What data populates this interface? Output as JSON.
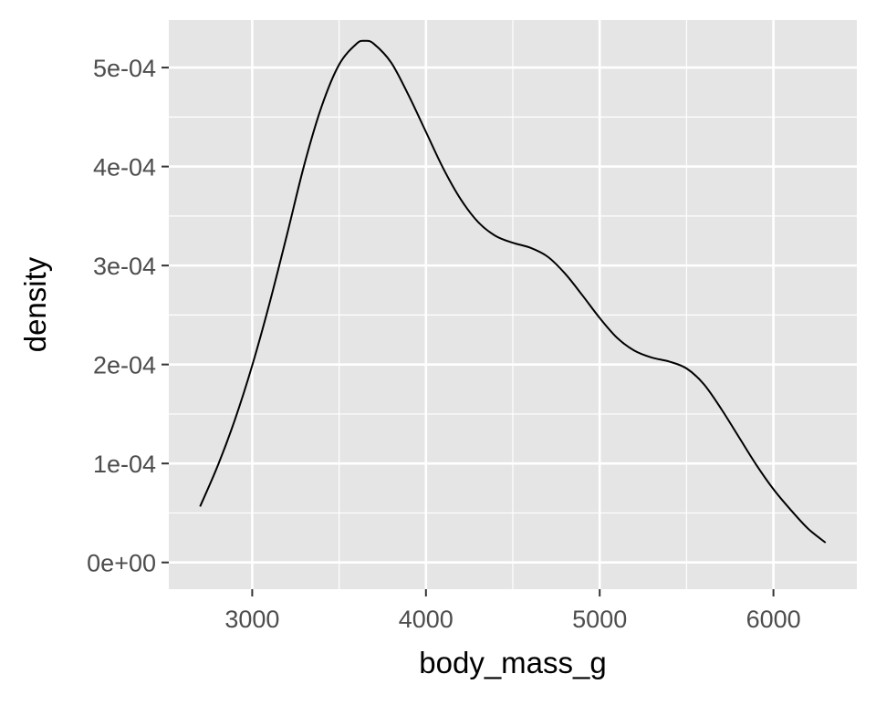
{
  "chart_data": {
    "type": "line",
    "title": "",
    "xlabel": "body_mass_g",
    "ylabel": "density",
    "xlim": [
      2520,
      6480
    ],
    "ylim": [
      -2.7e-05,
      0.000548
    ],
    "xticks": [
      3000,
      4000,
      5000,
      6000
    ],
    "xtick_labels": [
      "3000",
      "4000",
      "5000",
      "6000"
    ],
    "yticks": [
      0,
      0.0001,
      0.0002,
      0.0003,
      0.0004,
      0.0005
    ],
    "ytick_labels": [
      "0e+00",
      "1e-04",
      "2e-04",
      "3e-04",
      "4e-04",
      "5e-04"
    ],
    "grid": true,
    "legend": "none",
    "series": [
      {
        "color": "#000000",
        "x": [
          2700,
          2800,
          2900,
          3000,
          3100,
          3200,
          3300,
          3400,
          3500,
          3600,
          3650,
          3700,
          3800,
          3900,
          4000,
          4100,
          4200,
          4300,
          4400,
          4500,
          4600,
          4700,
          4800,
          4900,
          5000,
          5100,
          5200,
          5300,
          5400,
          5500,
          5600,
          5700,
          5800,
          5900,
          6000,
          6100,
          6200,
          6300
        ],
        "y": [
          5.65e-05,
          9.7e-05,
          0.000144,
          0.000199,
          0.000262,
          0.000331,
          0.000402,
          0.000461,
          0.000503,
          0.000524,
          0.000527,
          0.000524,
          0.000505,
          0.000472,
          0.000435,
          0.000398,
          0.000367,
          0.000344,
          0.00033,
          0.000323,
          0.000318,
          0.000309,
          0.000292,
          0.00027,
          0.000247,
          0.000227,
          0.000214,
          0.000207,
          0.000203,
          0.000196,
          0.00018,
          0.000155,
          0.000127,
          9.9e-05,
          7.4e-05,
          5.3e-05,
          3.4e-05,
          2e-05
        ]
      }
    ]
  },
  "colors": {
    "panel_background": "#e5e5e5",
    "grid_major": "#ffffff",
    "tick_label": "#4d4d4d",
    "axis_title": "#000000"
  }
}
